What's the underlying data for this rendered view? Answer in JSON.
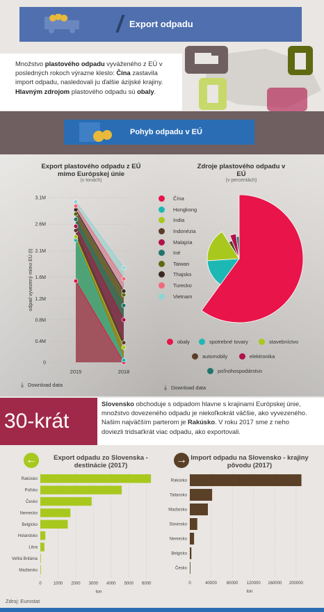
{
  "header": {
    "title": "Export odpadu"
  },
  "intro": {
    "p1": "Množstvo ",
    "b1": "plastového odpadu",
    "p2": " vyváženého z EÚ v posledných rokoch výrazne kleslo: ",
    "b2": "Čína",
    "p3": " zastavila import odpadu, nasledovali ju ďalšie ázijské krajiny. ",
    "b3": "Hlavným zdrojom",
    "p4": " plastového odpadu sú ",
    "b4": "obaly",
    "p5": "."
  },
  "section2": {
    "title": "Pohyb odpadu v EÚ"
  },
  "chart_data": [
    {
      "type": "line",
      "title": "Export plastového odpadu z EÚ mimo Európskej únie",
      "subtitle": "(v tonách)",
      "ylabel": "odpad vyvezený mimo EÚ (t)",
      "x": [
        "2015",
        "2018"
      ],
      "yticks": [
        "0",
        "0.4M",
        "0.8M",
        "1.2M",
        "1.6M",
        "2.1M",
        "2.6M",
        "3.1M"
      ],
      "ylim": [
        0,
        3100000
      ],
      "series": [
        {
          "name": "Čína",
          "color": "#e8144a",
          "values": [
            1530000,
            0
          ]
        },
        {
          "name": "Hongkong",
          "color": "#1eb8b4",
          "values": [
            2300000,
            40000
          ]
        },
        {
          "name": "India",
          "color": "#a8c81e",
          "values": [
            2360000,
            280000
          ]
        },
        {
          "name": "Indonézia",
          "color": "#5a3d28",
          "values": [
            2480000,
            370000
          ]
        },
        {
          "name": "Malajzia",
          "color": "#b0124a",
          "values": [
            2560000,
            800000
          ]
        },
        {
          "name": "Iné",
          "color": "#23746e",
          "values": [
            2690000,
            1070000
          ]
        },
        {
          "name": "Taiwan",
          "color": "#5e6a12",
          "values": [
            2790000,
            1270000
          ]
        },
        {
          "name": "Thajsko",
          "color": "#3a2a22",
          "values": [
            2870000,
            1340000
          ]
        },
        {
          "name": "Turecko",
          "color": "#f06a7c",
          "values": [
            2940000,
            1570000
          ]
        },
        {
          "name": "Vietnam",
          "color": "#8fd4d2",
          "values": [
            3020000,
            1780000
          ]
        }
      ],
      "download": "Download data"
    },
    {
      "type": "pie",
      "title": "Zdroje plastového odpadu v EÚ",
      "subtitle": "(v percentách)",
      "slices": [
        {
          "name": "obaly",
          "color": "#e8144a",
          "value": 60
        },
        {
          "name": "spotrebné tovary",
          "color": "#1eb8b4",
          "value": 14
        },
        {
          "name": "stavebníctvo",
          "color": "#a8c81e",
          "value": 17
        },
        {
          "name": "automobily",
          "color": "#5a3d28",
          "value": 3
        },
        {
          "name": "elektronika",
          "color": "#b0124a",
          "value": 4
        },
        {
          "name": "poľnohospodárstvo",
          "color": "#23746e",
          "value": 2
        }
      ],
      "download": "Download data"
    },
    {
      "type": "bar",
      "title": "Export odpadu zo Slovenska - destinácie (2017)",
      "categories": [
        "Rakúsko",
        "Poľsko",
        "Česko",
        "Nemecko",
        "Belgicko",
        "Holandsko",
        "Litva",
        "Veľká Británia",
        "Maďarsko"
      ],
      "values": [
        6250,
        4600,
        2900,
        1700,
        1550,
        280,
        230,
        30,
        10
      ],
      "xticks": [
        "0",
        "1000",
        "2000",
        "3000",
        "4000",
        "5000",
        "6000"
      ],
      "xlim": [
        0,
        6600
      ],
      "xlabel": "ton",
      "color": "#a8c81e"
    },
    {
      "type": "bar",
      "title": "Import odpadu na Slovensko - krajiny pôvodu (2017)",
      "categories": [
        "Rakúsko",
        "Taliansko",
        "Maďarsko",
        "Slovinsko",
        "Nemecko",
        "Belgicko",
        "Česko"
      ],
      "values": [
        210000,
        42000,
        34000,
        14000,
        8000,
        3000,
        1000
      ],
      "xticks": [
        "0",
        "40000",
        "80000",
        "120000",
        "160000",
        "200000"
      ],
      "xlim": [
        0,
        225000
      ],
      "xlabel": "ton",
      "color": "#5a4026"
    }
  ],
  "krat": {
    "big": "30-krát",
    "b1": "Slovensko",
    "t1": " obchoduje s odpadom hlavne s krajinami Európskej únie, množstvo dovezeného odpadu je niekoľkokrát väčšie, ako vyvezeného. Našim najväčším parterom je ",
    "b2": "Rakúsko",
    "t2": ". V roku 2017 sme z neho doviezli tridsaťkrát viac odpadu, ako exportovali."
  },
  "source": "Zdroj: Eurostat",
  "colors": {
    "brand_blue": "#2a6db5",
    "header_blue": "#4f6fae",
    "accent_red": "#a0294a",
    "green": "#a8c81e",
    "brown": "#5a4026"
  }
}
